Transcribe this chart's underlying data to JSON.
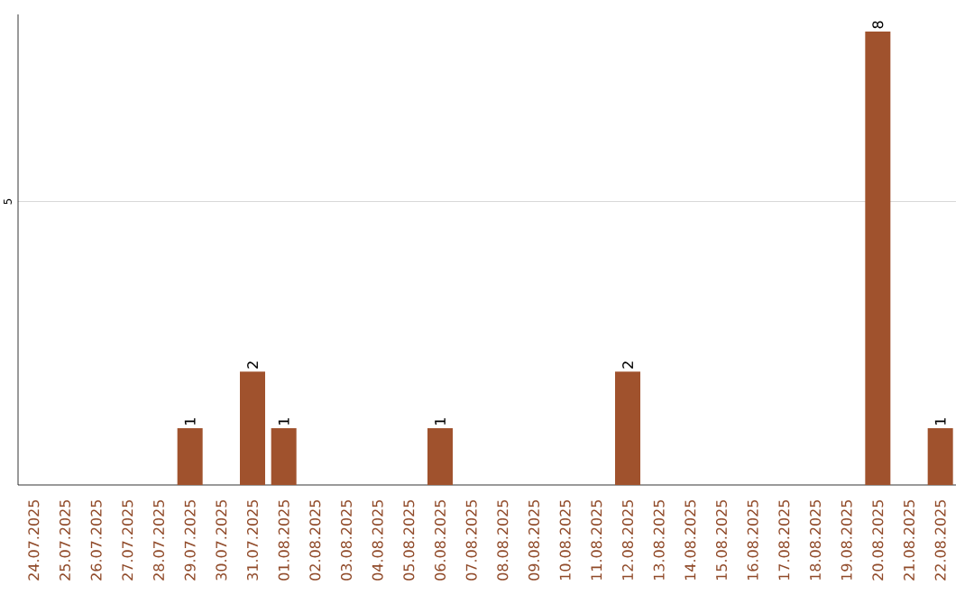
{
  "chart_data": {
    "type": "bar",
    "categories": [
      "24.07.2025",
      "25.07.2025",
      "26.07.2025",
      "27.07.2025",
      "28.07.2025",
      "29.07.2025",
      "30.07.2025",
      "31.07.2025",
      "01.08.2025",
      "02.08.2025",
      "03.08.2025",
      "04.08.2025",
      "05.08.2025",
      "06.08.2025",
      "07.08.2025",
      "08.08.2025",
      "09.08.2025",
      "10.08.2025",
      "11.08.2025",
      "12.08.2025",
      "13.08.2025",
      "14.08.2025",
      "15.08.2025",
      "16.08.2025",
      "17.08.2025",
      "18.08.2025",
      "19.08.2025",
      "20.08.2025",
      "21.08.2025",
      "22.08.2025"
    ],
    "values": [
      0,
      0,
      0,
      0,
      0,
      1,
      0,
      2,
      1,
      0,
      0,
      0,
      0,
      1,
      0,
      0,
      0,
      0,
      0,
      2,
      0,
      0,
      0,
      0,
      0,
      0,
      0,
      8,
      0,
      1
    ],
    "value_labels": [
      null,
      null,
      null,
      null,
      null,
      "1",
      null,
      "2",
      "1",
      null,
      null,
      null,
      null,
      "1",
      null,
      null,
      null,
      null,
      null,
      "2",
      null,
      null,
      null,
      null,
      null,
      null,
      null,
      "8",
      null,
      "1"
    ],
    "color": "#a0522d",
    "ylim": [
      0,
      8.3
    ],
    "yticks": [
      5
    ],
    "grid": "y"
  }
}
